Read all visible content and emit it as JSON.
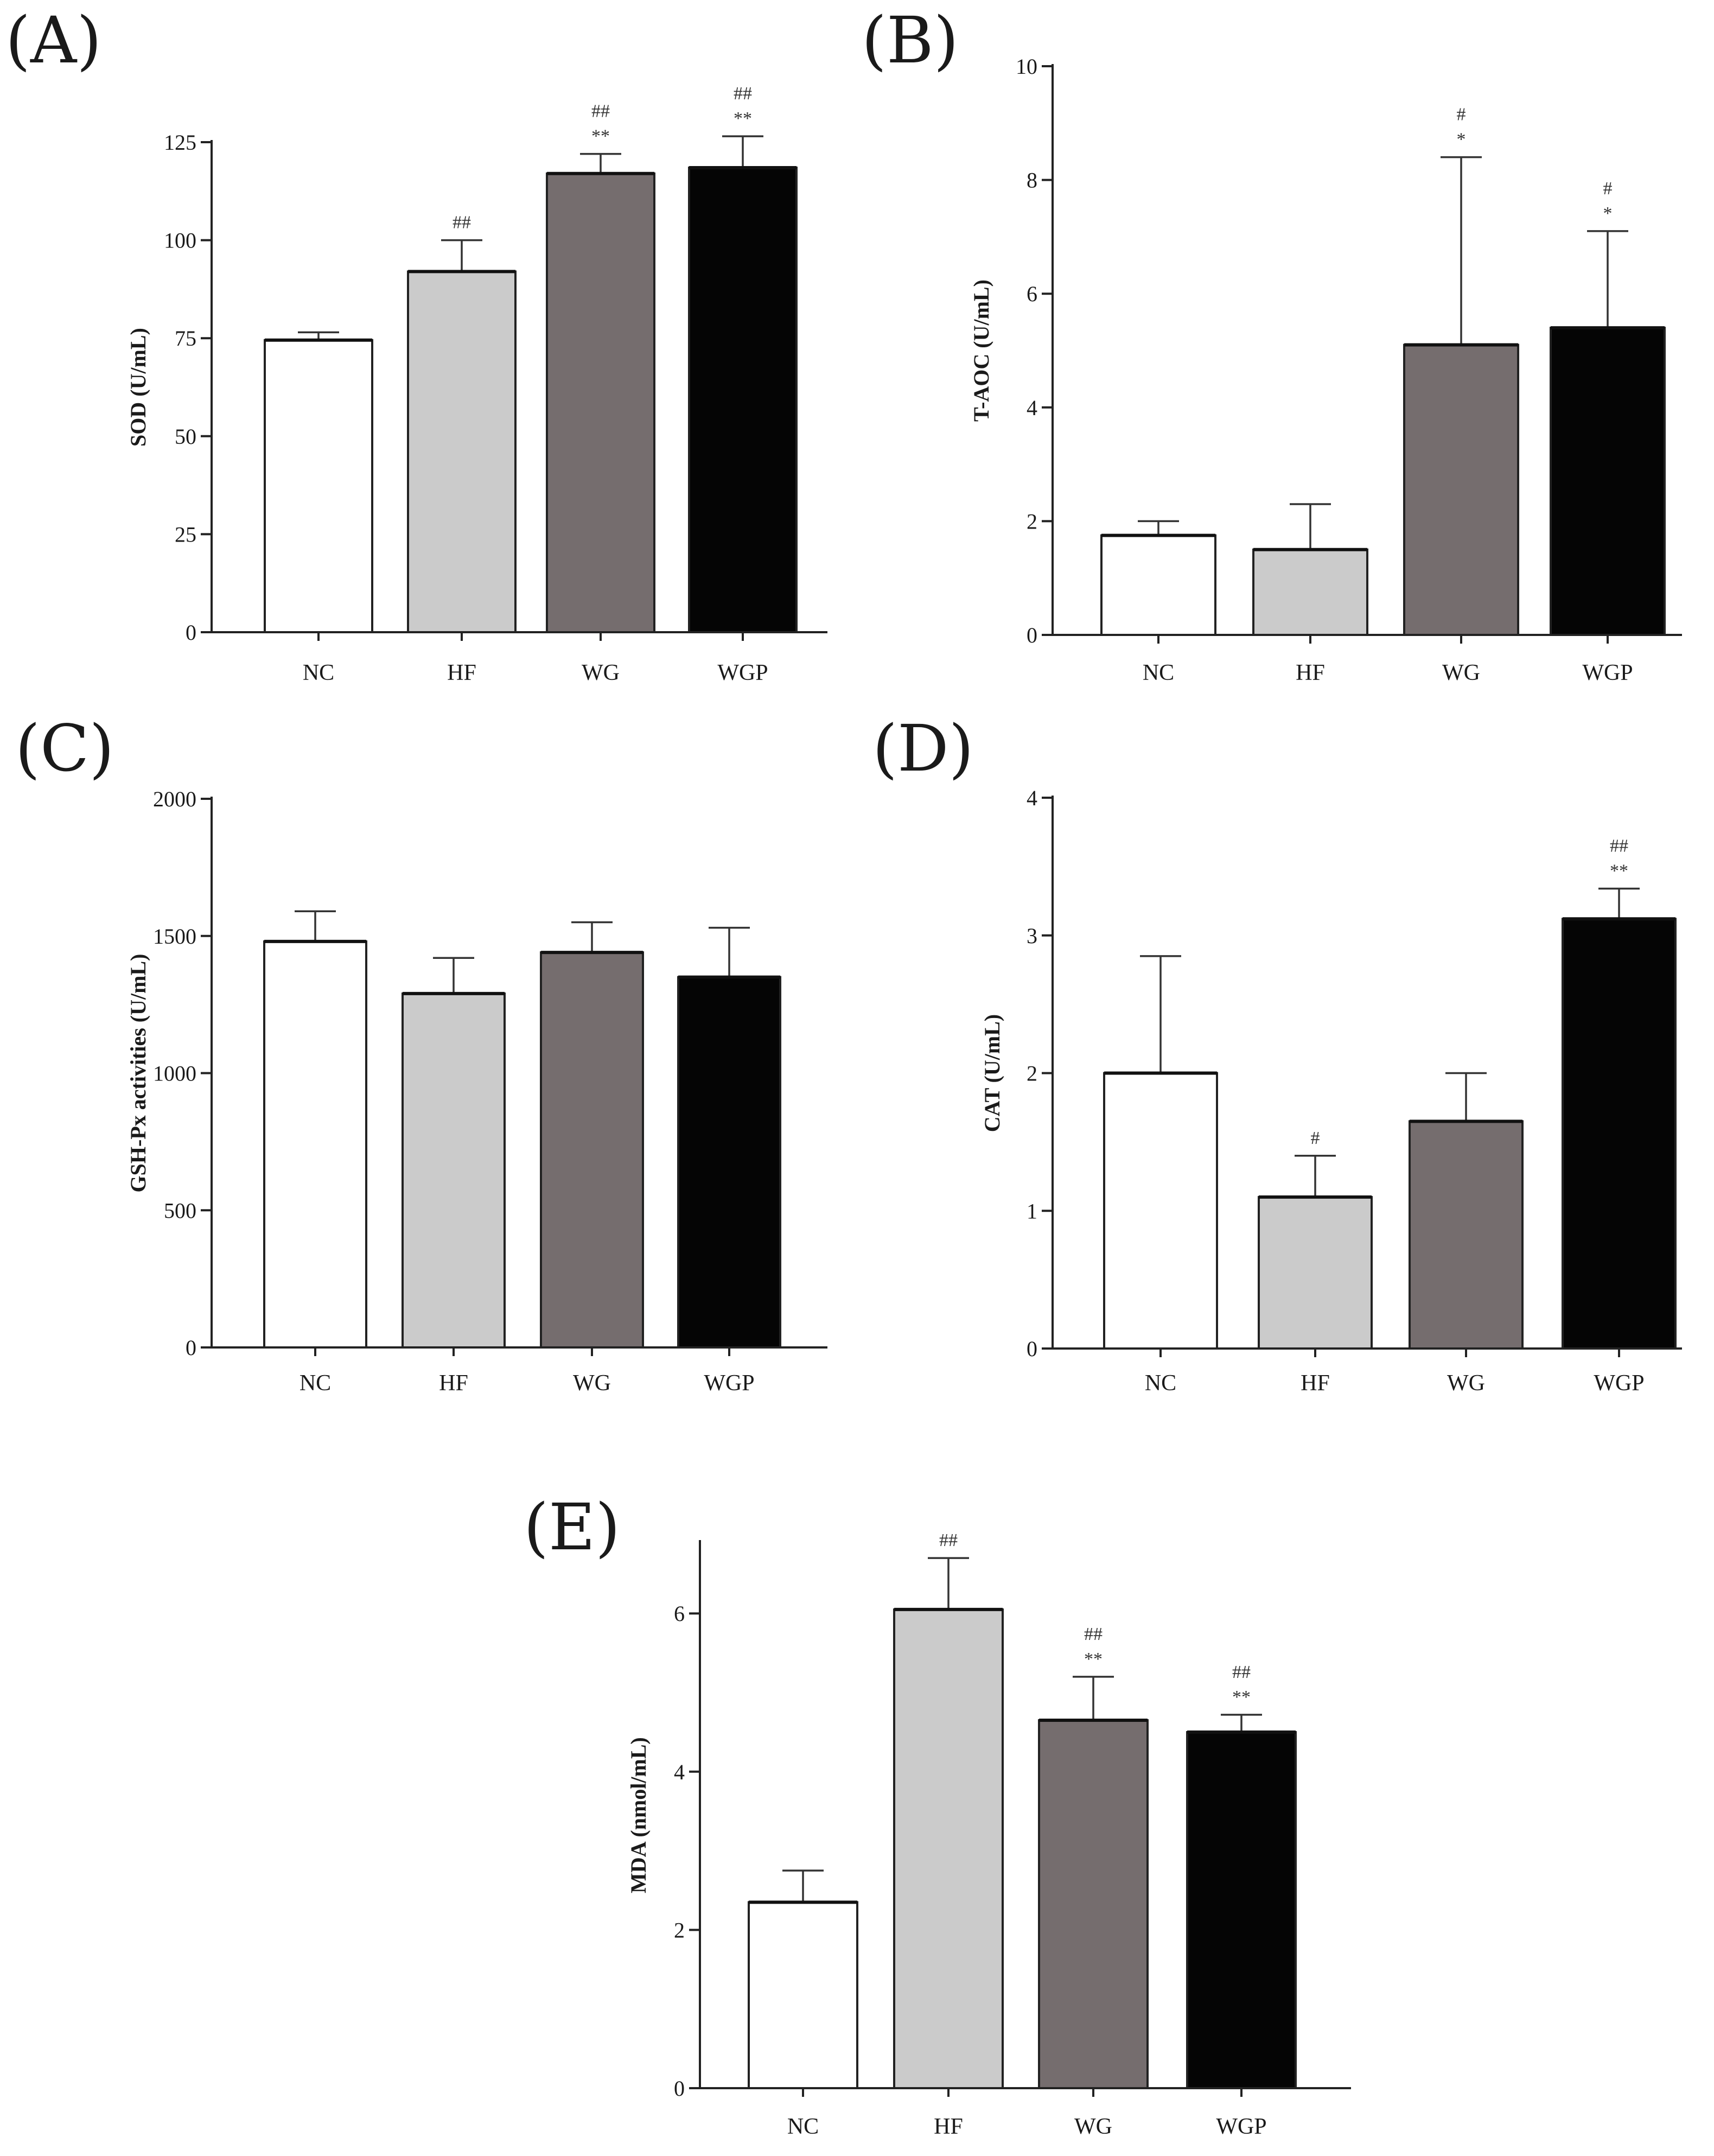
{
  "colors": {
    "NC": "#ffffff",
    "HF": "#cbcbcb",
    "WG": "#756d6e",
    "WGP": "#050505",
    "outline": "#222222"
  },
  "chart_data": [
    {
      "panel": "(A)",
      "type": "bar",
      "categories": [
        "NC",
        "HF",
        "WG",
        "WGP"
      ],
      "values": [
        74.5,
        92,
        117,
        118.5
      ],
      "errors": [
        2,
        8,
        5,
        8
      ],
      "annotations": [
        [],
        [
          "##"
        ],
        [
          "##",
          "**"
        ],
        [
          "##",
          "**"
        ]
      ],
      "ylabel": "SOD (U/mL)",
      "ylim": [
        0,
        125
      ],
      "yticks": [
        0,
        25,
        50,
        75,
        100,
        125
      ],
      "ytick_labels": [
        "0",
        "25",
        "50",
        "75",
        "100",
        "125"
      ]
    },
    {
      "panel": "(B)",
      "type": "bar",
      "categories": [
        "NC",
        "HF",
        "WG",
        "WGP"
      ],
      "values": [
        1.75,
        1.5,
        5.1,
        5.4
      ],
      "errors": [
        0.25,
        0.8,
        3.3,
        1.7
      ],
      "annotations": [
        [],
        [],
        [
          "#",
          "*"
        ],
        [
          "#",
          "*"
        ]
      ],
      "ylabel": "T-AOC (U/mL)",
      "ylim": [
        0,
        10
      ],
      "yticks": [
        0,
        2,
        4,
        6,
        8,
        10
      ],
      "ytick_labels": [
        "0",
        "2",
        "4",
        "6",
        "8",
        "10"
      ]
    },
    {
      "panel": "(C)",
      "type": "bar",
      "categories": [
        "NC",
        "HF",
        "WG",
        "WGP"
      ],
      "values": [
        1480,
        1290,
        1440,
        1350
      ],
      "errors": [
        110,
        130,
        110,
        180
      ],
      "annotations": [
        [],
        [],
        [],
        []
      ],
      "ylabel": "GSH-Px activities (U/mL)",
      "ylim": [
        0,
        2000
      ],
      "yticks": [
        0,
        500,
        1000,
        1500,
        2000
      ],
      "ytick_labels": [
        "0",
        "500",
        "1000",
        "1500",
        "2000"
      ]
    },
    {
      "panel": "(D)",
      "type": "bar",
      "categories": [
        "NC",
        "HF",
        "WG",
        "WGP"
      ],
      "values": [
        2.0,
        1.1,
        1.65,
        3.12
      ],
      "errors": [
        0.85,
        0.3,
        0.35,
        0.22
      ],
      "annotations": [
        [],
        [
          "#"
        ],
        [],
        [
          "##",
          "**"
        ]
      ],
      "ylabel": "CAT (U/mL)",
      "ylim": [
        0,
        4
      ],
      "yticks": [
        0,
        1,
        2,
        3,
        4
      ],
      "ytick_labels": [
        "0",
        "1",
        "2",
        "3",
        "4"
      ]
    },
    {
      "panel": "(E)",
      "type": "bar",
      "categories": [
        "NC",
        "HF",
        "WG",
        "WGP"
      ],
      "values": [
        2.35,
        6.05,
        4.65,
        4.5
      ],
      "errors": [
        0.4,
        0.65,
        0.55,
        0.22
      ],
      "annotations": [
        [],
        [
          "##"
        ],
        [
          "##",
          "**"
        ],
        [
          "##",
          "**"
        ]
      ],
      "ylabel": "MDA (nmol/mL)",
      "ylim": [
        0,
        6.9
      ],
      "yticks": [
        0,
        2,
        4,
        6
      ],
      "ytick_labels": [
        "0",
        "2",
        "4",
        "6"
      ]
    }
  ]
}
